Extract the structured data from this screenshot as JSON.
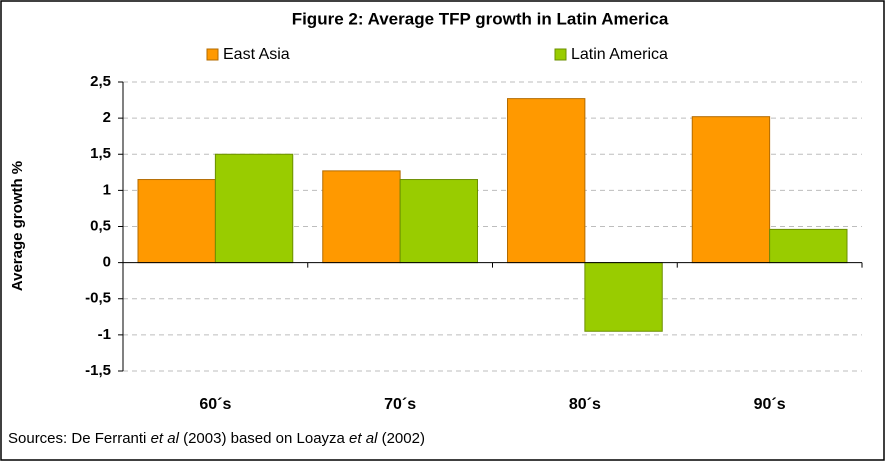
{
  "chart_data": {
    "type": "bar",
    "title": "Figure 2: Average TFP growth in Latin America",
    "y_label": "Average growth %",
    "categories": [
      "60´s",
      "70´s",
      "80´s",
      "90´s"
    ],
    "series": [
      {
        "name": "East Asia",
        "color": "#ff9900",
        "values": [
          1.15,
          1.27,
          2.27,
          2.02
        ]
      },
      {
        "name": "Latin America",
        "color": "#99cc00",
        "values": [
          1.5,
          1.15,
          -0.95,
          0.46
        ]
      }
    ],
    "ylim": [
      -1.5,
      2.5
    ],
    "yticks": [
      {
        "value": -1.5,
        "label": "-1,5"
      },
      -1,
      {
        "value": -0.5,
        "label": "-0,5"
      },
      0,
      {
        "value": 0.5,
        "label": "0,5"
      },
      1,
      {
        "value": 1.5,
        "label": "1,5"
      },
      2,
      {
        "value": 2.5,
        "label": "2,5"
      }
    ],
    "grid": true,
    "legend": "top",
    "source": [
      "Sources: De  Ferranti ",
      "et al",
      "  (2003) based on Loayza ",
      "et al",
      "  (2002)"
    ]
  }
}
